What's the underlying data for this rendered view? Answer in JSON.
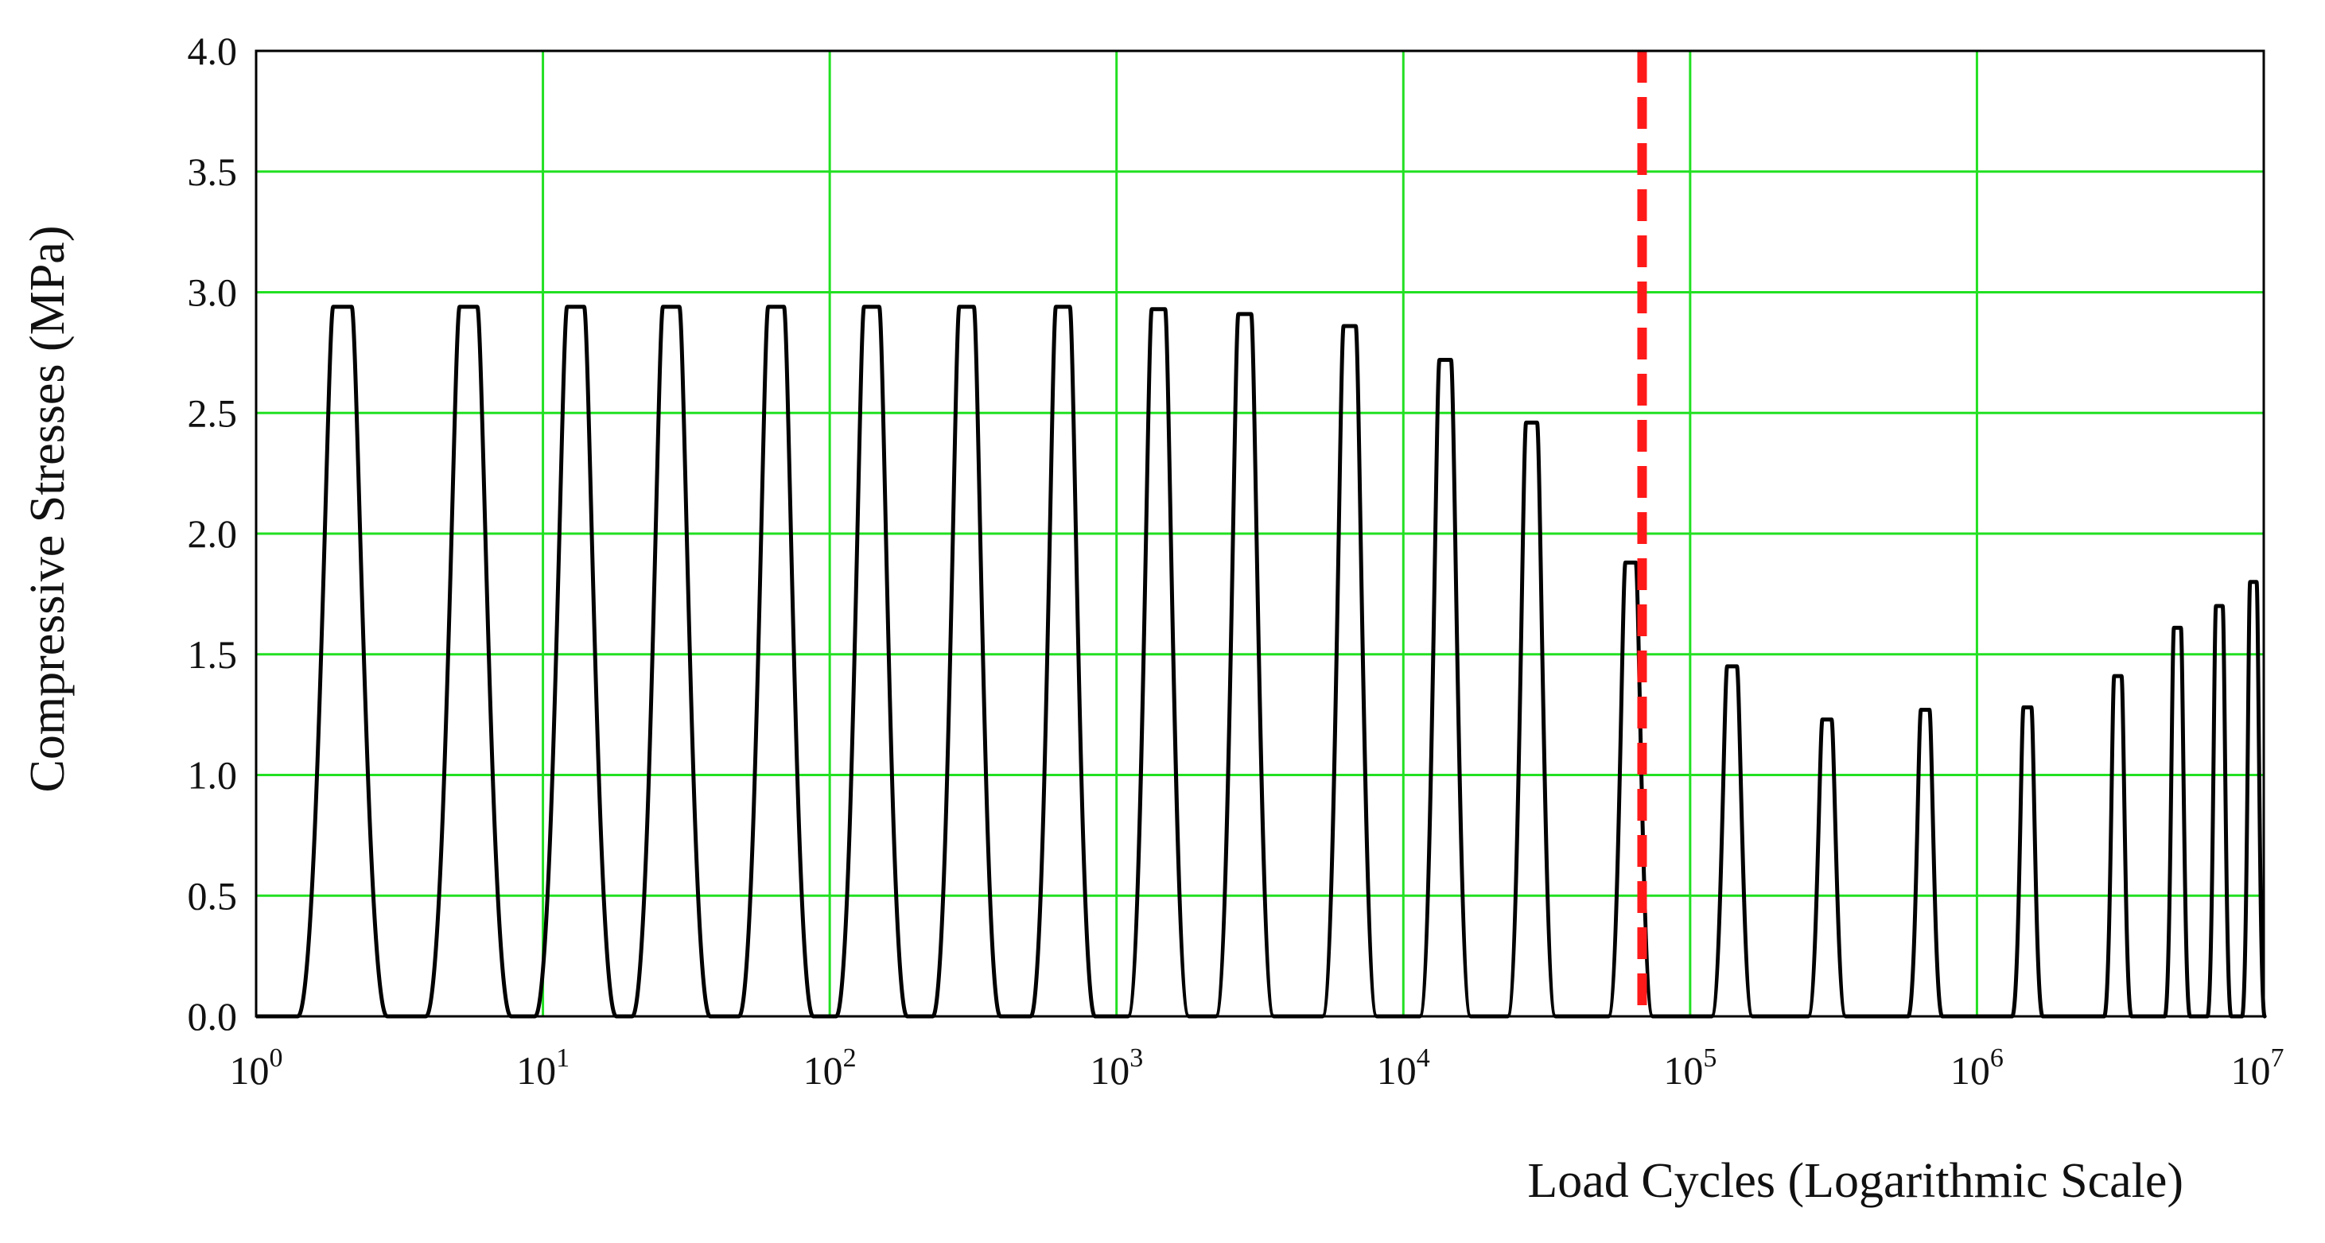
{
  "chart_data": {
    "type": "line",
    "title": "",
    "xlabel": "Load Cycles (Logarithmic Scale)",
    "ylabel": "Compressive  Stresses (MPa)",
    "xscale": "log",
    "xlim": [
      1,
      10000000
    ],
    "ylim": [
      0,
      4
    ],
    "grid": true,
    "legend": "none",
    "x_tick_labels": [
      {
        "base": "10",
        "exp": "0"
      },
      {
        "base": "10",
        "exp": "1"
      },
      {
        "base": "10",
        "exp": "2"
      },
      {
        "base": "10",
        "exp": "3"
      },
      {
        "base": "10",
        "exp": "4"
      },
      {
        "base": "10",
        "exp": "5"
      },
      {
        "base": "10",
        "exp": "6"
      },
      {
        "base": "10",
        "exp": "7"
      }
    ],
    "y_ticks": [
      "0.0",
      "0.5",
      "1.0",
      "1.5",
      "2.0",
      "2.5",
      "3.0",
      "3.5",
      "4.0"
    ],
    "series": [
      {
        "kind": "stress-pulses",
        "peaks": [
          {
            "cycle": 2.0,
            "stress": 2.94
          },
          {
            "cycle": 5.5,
            "stress": 2.94
          },
          {
            "cycle": 13,
            "stress": 2.94
          },
          {
            "cycle": 28,
            "stress": 2.94
          },
          {
            "cycle": 65,
            "stress": 2.94
          },
          {
            "cycle": 140,
            "stress": 2.94
          },
          {
            "cycle": 300,
            "stress": 2.94
          },
          {
            "cycle": 650,
            "stress": 2.94
          },
          {
            "cycle": 1400,
            "stress": 2.93
          },
          {
            "cycle": 2800,
            "stress": 2.91
          },
          {
            "cycle": 6500,
            "stress": 2.86
          },
          {
            "cycle": 14000,
            "stress": 2.72
          },
          {
            "cycle": 28000,
            "stress": 2.46
          },
          {
            "cycle": 62000,
            "stress": 1.88
          },
          {
            "cycle": 140000,
            "stress": 1.45
          },
          {
            "cycle": 300000,
            "stress": 1.23
          },
          {
            "cycle": 660000,
            "stress": 1.27
          },
          {
            "cycle": 1500000,
            "stress": 1.28
          },
          {
            "cycle": 3100000,
            "stress": 1.41
          },
          {
            "cycle": 5000000,
            "stress": 1.61
          },
          {
            "cycle": 7000000,
            "stress": 1.7
          },
          {
            "cycle": 9200000,
            "stress": 1.8
          }
        ]
      }
    ],
    "reference_line": {
      "x": 68000,
      "style": "dashed",
      "color": "#ff1a1a"
    },
    "colors": {
      "grid": "#22e022",
      "curve": "#000000",
      "axis": "#000000"
    }
  }
}
